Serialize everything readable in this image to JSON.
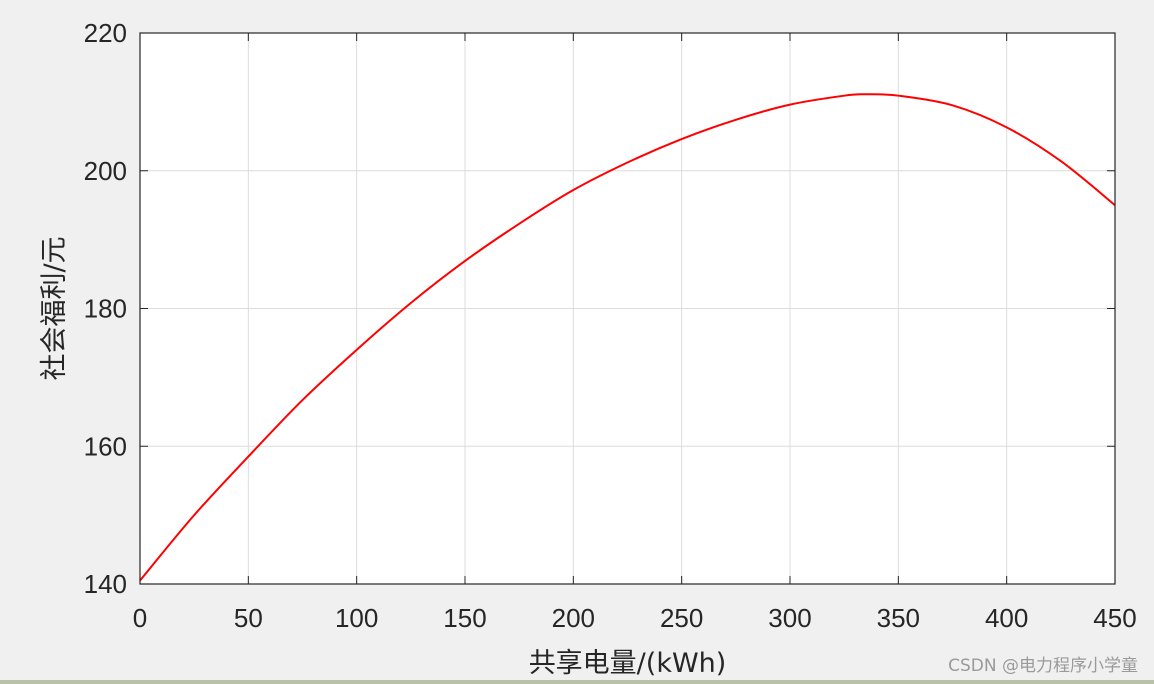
{
  "chart_data": {
    "type": "line",
    "title": "",
    "xlabel": "共享电量/(kWh)",
    "ylabel": "社会福利/元",
    "xlim": [
      0,
      450
    ],
    "ylim": [
      140,
      220
    ],
    "xticks": [
      0,
      50,
      100,
      150,
      200,
      250,
      300,
      350,
      400,
      450
    ],
    "yticks": [
      140,
      160,
      180,
      200,
      220
    ],
    "grid": true,
    "series": [
      {
        "color": "#ff0000",
        "x": [
          0,
          25,
          50,
          75,
          100,
          125,
          150,
          175,
          200,
          225,
          250,
          275,
          300,
          325,
          335,
          350,
          375,
          400,
          425,
          450
        ],
        "y": [
          140.5,
          150.0,
          158.5,
          166.7,
          174.0,
          180.8,
          186.9,
          192.3,
          197.2,
          201.2,
          204.6,
          207.4,
          209.6,
          210.9,
          211.1,
          210.9,
          209.5,
          206.3,
          201.4,
          195.0
        ]
      }
    ]
  },
  "watermark": "CSDN @电力程序小学童"
}
